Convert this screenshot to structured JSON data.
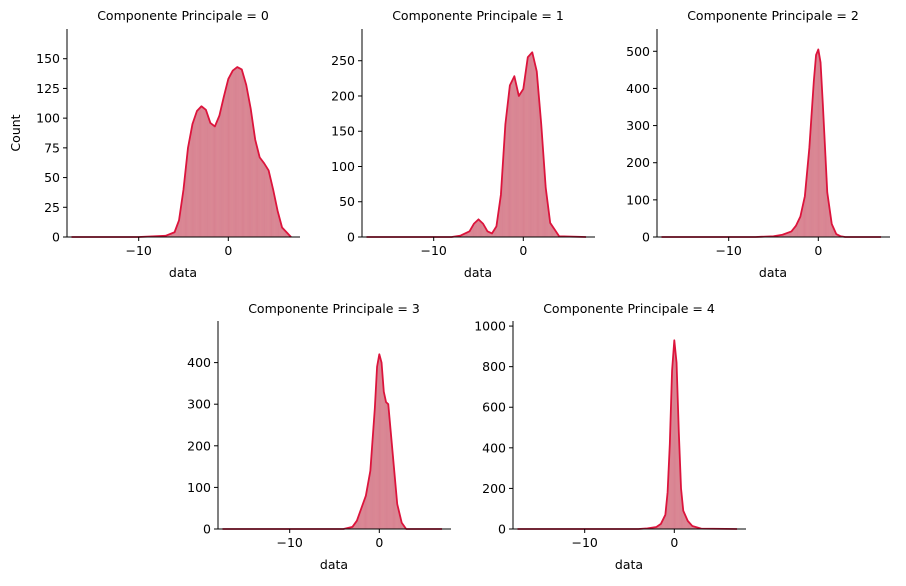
{
  "colors": {
    "accent": "#DC143C",
    "bar_fill": "#D47585"
  },
  "chart_data": [
    {
      "type": "histogram",
      "title": "Componente Principale = 0",
      "xlabel": "data",
      "ylabel": "Count",
      "xlim": [
        -18,
        8
      ],
      "ylim": [
        0,
        175
      ],
      "xticks": [
        -10,
        0
      ],
      "yticks": [
        0,
        25,
        50,
        75,
        100,
        125,
        150
      ],
      "kde": {
        "x": [
          -17.5,
          -10,
          -7,
          -6,
          -5.5,
          -5,
          -4.5,
          -4,
          -3.5,
          -3,
          -2.5,
          -2,
          -1.5,
          -1,
          -0.5,
          0,
          0.5,
          1,
          1.5,
          2,
          2.5,
          3,
          3.5,
          4,
          4.5,
          5,
          5.5,
          6,
          7
        ],
        "y": [
          0,
          0,
          1,
          4,
          14,
          40,
          75,
          95,
          106,
          110,
          107,
          96,
          93,
          102,
          118,
          133,
          140,
          143,
          141,
          128,
          108,
          82,
          67,
          62,
          56,
          40,
          22,
          8,
          0
        ]
      }
    },
    {
      "type": "histogram",
      "title": "Componente Principale = 1",
      "xlabel": "data",
      "ylabel": "",
      "xlim": [
        -18,
        8
      ],
      "ylim": [
        0,
        295
      ],
      "xticks": [
        -10,
        0
      ],
      "yticks": [
        0,
        50,
        100,
        150,
        200,
        250
      ],
      "kde": {
        "x": [
          -17.5,
          -8,
          -7,
          -6,
          -5.5,
          -5,
          -4.5,
          -4,
          -3.5,
          -3,
          -2.5,
          -2,
          -1.5,
          -1,
          -0.5,
          0,
          0.5,
          1,
          1.5,
          2,
          2.5,
          3,
          4,
          7
        ],
        "y": [
          0,
          0,
          2,
          8,
          19,
          25,
          19,
          8,
          5,
          15,
          60,
          160,
          215,
          228,
          200,
          210,
          255,
          262,
          235,
          160,
          70,
          20,
          1,
          0
        ]
      }
    },
    {
      "type": "histogram",
      "title": "Componente Principale = 2",
      "xlabel": "data",
      "ylabel": "",
      "xlim": [
        -18,
        8
      ],
      "ylim": [
        0,
        560
      ],
      "xticks": [
        -10,
        0
      ],
      "yticks": [
        0,
        100,
        200,
        300,
        400,
        500
      ],
      "kde": {
        "x": [
          -17.5,
          -7,
          -5,
          -4,
          -3,
          -2.5,
          -2,
          -1.5,
          -1,
          -0.5,
          -0.25,
          0,
          0.25,
          0.5,
          1,
          1.5,
          2,
          2.5,
          3,
          7
        ],
        "y": [
          0,
          0,
          2,
          6,
          15,
          30,
          55,
          110,
          240,
          420,
          490,
          505,
          470,
          360,
          120,
          35,
          8,
          2,
          0,
          0
        ]
      }
    },
    {
      "type": "histogram",
      "title": "Componente Principale = 3",
      "xlabel": "data",
      "ylabel": "",
      "xlim": [
        -18,
        8
      ],
      "ylim": [
        0,
        500
      ],
      "xticks": [
        -10,
        0
      ],
      "yticks": [
        0,
        100,
        200,
        300,
        400
      ],
      "kde": {
        "x": [
          -17.5,
          -4,
          -3,
          -2.5,
          -2,
          -1.5,
          -1,
          -0.5,
          -0.25,
          0,
          0.25,
          0.5,
          0.75,
          1,
          1.5,
          2,
          2.5,
          3,
          7
        ],
        "y": [
          0,
          0,
          5,
          20,
          50,
          80,
          140,
          290,
          390,
          420,
          400,
          330,
          305,
          300,
          180,
          60,
          15,
          0,
          0
        ]
      }
    },
    {
      "type": "histogram",
      "title": "Componente Principale = 4",
      "xlabel": "data",
      "ylabel": "",
      "xlim": [
        -18,
        8
      ],
      "ylim": [
        0,
        1025
      ],
      "xticks": [
        -10,
        0
      ],
      "yticks": [
        0,
        200,
        400,
        600,
        800,
        1000
      ],
      "kde": {
        "x": [
          -17.5,
          -4,
          -3,
          -2,
          -1.5,
          -1,
          -0.75,
          -0.5,
          -0.25,
          0,
          0.25,
          0.5,
          0.75,
          1,
          1.5,
          2,
          3,
          7
        ],
        "y": [
          0,
          0,
          3,
          10,
          25,
          70,
          180,
          420,
          780,
          930,
          820,
          480,
          200,
          90,
          40,
          15,
          2,
          0
        ]
      }
    }
  ]
}
